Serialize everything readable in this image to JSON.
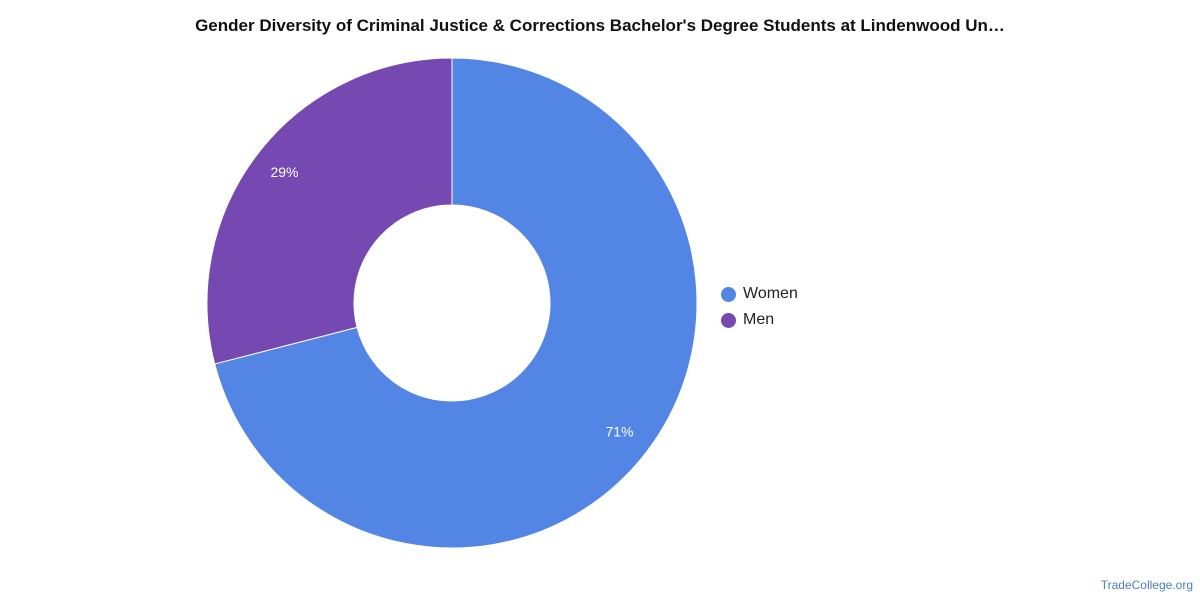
{
  "title": "Gender Diversity of Criminal Justice & Corrections Bachelor's Degree Students at Lindenwood Un…",
  "source": "TradeCollege.org",
  "chart_data": {
    "type": "pie",
    "title": "Gender Diversity of Criminal Justice & Corrections Bachelor's Degree Students at Lindenwood Un…",
    "donut": true,
    "legend_position": "right",
    "series": [
      {
        "name": "Women",
        "value": 71,
        "label": "71%",
        "color": "#5386e4"
      },
      {
        "name": "Men",
        "value": 29,
        "label": "29%",
        "color": "#7549b1"
      }
    ]
  }
}
